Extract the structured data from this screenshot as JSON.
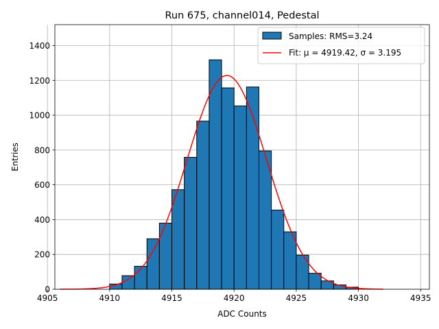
{
  "chart_data": {
    "type": "bar",
    "title": "Run 675, channel014, Pedestal",
    "xlabel": "ADC Counts",
    "ylabel": "Entries",
    "xlim": [
      4905.6,
      4935.7
    ],
    "ylim": [
      0,
      1520
    ],
    "xticks": [
      4905,
      4910,
      4915,
      4920,
      4925,
      4930,
      4935
    ],
    "yticks": [
      0,
      200,
      400,
      600,
      800,
      1000,
      1200,
      1400
    ],
    "grid": true,
    "legend_position": "top-right",
    "histogram": {
      "name": "Samples: RMS=3.24",
      "color": "#1f77b4",
      "edge_color": "#000000",
      "bin_edges": [
        4910,
        4911,
        4912,
        4913,
        4914,
        4915,
        4916,
        4917,
        4918,
        4919,
        4920,
        4921,
        4922,
        4923,
        4924,
        4925,
        4926,
        4927,
        4928,
        4929,
        4930
      ],
      "counts": [
        30,
        78,
        132,
        290,
        380,
        572,
        758,
        966,
        1318,
        1157,
        1053,
        1162,
        795,
        455,
        330,
        196,
        92,
        48,
        25,
        12
      ]
    },
    "fit": {
      "name": "Fit: μ = 4919.42, σ = 3.195",
      "color": "#ff0000",
      "mu": 4919.42,
      "sigma": 3.195,
      "amplitude": 1228,
      "x_range": [
        4906,
        4932
      ]
    }
  }
}
